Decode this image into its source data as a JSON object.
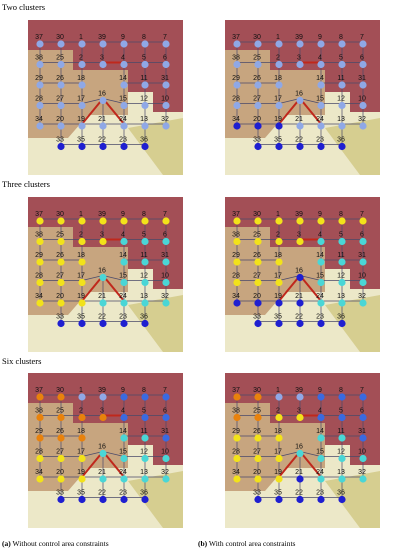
{
  "rows": [
    {
      "title": "Two clusters",
      "palette": [
        "#8fa8e6",
        "#1f1fd0"
      ],
      "panels": [
        {
          "clusters": [
            0,
            0,
            0,
            0,
            0,
            0,
            0,
            0,
            0,
            0,
            0,
            0,
            0,
            0,
            0,
            0,
            0,
            0,
            0,
            0,
            0,
            0,
            0,
            0,
            0,
            0,
            0,
            0,
            0,
            0,
            0,
            0,
            0,
            0,
            1,
            1,
            1,
            1,
            1
          ]
        },
        {
          "clusters": [
            0,
            0,
            0,
            0,
            0,
            0,
            0,
            0,
            0,
            0,
            0,
            0,
            0,
            0,
            0,
            0,
            0,
            0,
            0,
            0,
            0,
            0,
            0,
            0,
            0,
            0,
            0,
            1,
            1,
            1,
            0,
            0,
            0,
            0,
            1,
            1,
            1,
            1,
            1
          ]
        }
      ]
    },
    {
      "title": "Three clusters",
      "palette": [
        "#f2e21a",
        "#4ad6d6",
        "#1f1fd0"
      ],
      "panels": [
        {
          "clusters": [
            0,
            0,
            0,
            0,
            0,
            0,
            0,
            0,
            0,
            0,
            0,
            1,
            1,
            1,
            0,
            0,
            0,
            1,
            1,
            1,
            0,
            0,
            0,
            1,
            1,
            1,
            1,
            0,
            0,
            0,
            1,
            1,
            1,
            1,
            2,
            2,
            2,
            2,
            2
          ]
        },
        {
          "clusters": [
            0,
            0,
            0,
            0,
            0,
            0,
            0,
            0,
            0,
            0,
            0,
            1,
            1,
            1,
            0,
            0,
            0,
            1,
            1,
            1,
            0,
            0,
            0,
            2,
            1,
            1,
            1,
            2,
            2,
            2,
            2,
            1,
            1,
            1,
            2,
            2,
            2,
            2,
            2
          ]
        }
      ]
    },
    {
      "title": "Six clusters",
      "palette": [
        "#e8820c",
        "#f2e21a",
        "#4ad6d6",
        "#3a6ae0",
        "#8fa8e6",
        "#1f1fd0"
      ],
      "panels": [
        {
          "clusters": [
            0,
            0,
            4,
            4,
            3,
            3,
            3,
            0,
            0,
            0,
            0,
            3,
            3,
            3,
            0,
            0,
            0,
            2,
            2,
            3,
            1,
            1,
            1,
            2,
            2,
            2,
            2,
            1,
            1,
            1,
            2,
            2,
            2,
            2,
            5,
            5,
            5,
            5,
            5
          ]
        },
        {
          "clusters": [
            0,
            0,
            4,
            4,
            3,
            3,
            3,
            0,
            0,
            1,
            1,
            3,
            3,
            3,
            1,
            1,
            1,
            2,
            2,
            3,
            1,
            1,
            1,
            2,
            2,
            2,
            2,
            1,
            1,
            1,
            5,
            2,
            2,
            2,
            5,
            5,
            5,
            5,
            5
          ]
        }
      ]
    }
  ],
  "nodes": [
    37,
    30,
    1,
    39,
    9,
    8,
    7,
    38,
    25,
    2,
    3,
    4,
    5,
    6,
    29,
    26,
    18,
    14,
    11,
    31,
    28,
    27,
    17,
    16,
    15,
    12,
    10,
    34,
    20,
    19,
    21,
    24,
    13,
    32,
    33,
    35,
    22,
    23,
    36
  ],
  "captions": [
    {
      "tag": "(a)",
      "text": "Without control area constraints"
    },
    {
      "tag": "(b)",
      "text": "With control area constraints"
    }
  ]
}
